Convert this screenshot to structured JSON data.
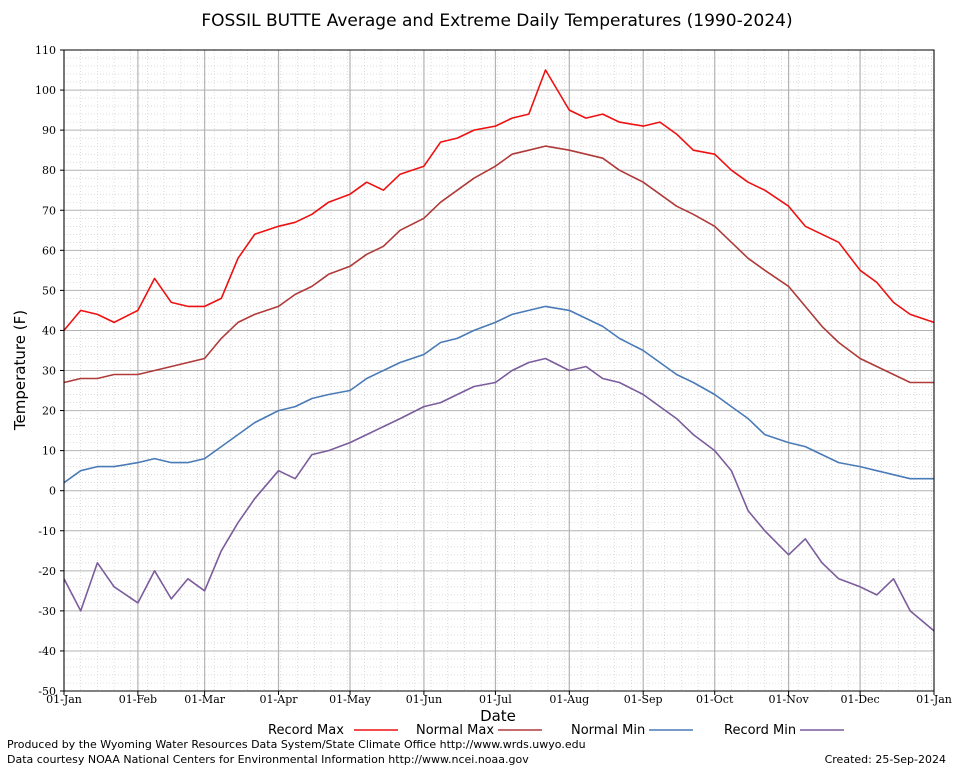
{
  "chart_data": {
    "type": "line",
    "title": "FOSSIL BUTTE Average and Extreme Daily Temperatures (1990-2024)",
    "xlabel": "Date",
    "ylabel": "Temperature (F)",
    "ylim": [
      -50,
      110
    ],
    "y_ticks": [
      "110",
      "100",
      "90",
      "80",
      "70",
      "60",
      "50",
      "40",
      "30",
      "20",
      "10",
      "0",
      "-10",
      "-20",
      "-30",
      "-40",
      "-50"
    ],
    "x_ticks": [
      "01-Jan",
      "01-Feb",
      "01-Mar",
      "01-Apr",
      "01-May",
      "01-Jun",
      "01-Jul",
      "01-Aug",
      "01-Sep",
      "01-Oct",
      "01-Nov",
      "01-Dec",
      "01-Jan"
    ],
    "grid": true,
    "legend_position": "bottom",
    "x_dates": [
      "01-Jan",
      "08-Jan",
      "15-Jan",
      "22-Jan",
      "01-Feb",
      "08-Feb",
      "15-Feb",
      "22-Feb",
      "01-Mar",
      "08-Mar",
      "15-Mar",
      "22-Mar",
      "01-Apr",
      "08-Apr",
      "15-Apr",
      "22-Apr",
      "01-May",
      "08-May",
      "15-May",
      "22-May",
      "01-Jun",
      "08-Jun",
      "15-Jun",
      "22-Jun",
      "01-Jul",
      "08-Jul",
      "15-Jul",
      "22-Jul",
      "01-Aug",
      "08-Aug",
      "15-Aug",
      "22-Aug",
      "01-Sep",
      "08-Sep",
      "15-Sep",
      "22-Sep",
      "01-Oct",
      "08-Oct",
      "15-Oct",
      "22-Oct",
      "01-Nov",
      "08-Nov",
      "15-Nov",
      "22-Nov",
      "01-Dec",
      "08-Dec",
      "15-Dec",
      "22-Dec",
      "31-Dec"
    ],
    "series": [
      {
        "name": "Record Max",
        "color": "#ee1111",
        "values": [
          40,
          45,
          44,
          42,
          45,
          53,
          47,
          46,
          46,
          48,
          58,
          64,
          66,
          67,
          69,
          72,
          74,
          77,
          75,
          79,
          81,
          87,
          88,
          90,
          91,
          93,
          94,
          105,
          95,
          93,
          94,
          92,
          91,
          92,
          89,
          85,
          84,
          80,
          77,
          75,
          71,
          66,
          64,
          62,
          55,
          52,
          47,
          44,
          42
        ]
      },
      {
        "name": "Normal Max",
        "color": "#b03a3a",
        "values": [
          27,
          28,
          28,
          29,
          29,
          30,
          31,
          32,
          33,
          38,
          42,
          44,
          46,
          49,
          51,
          54,
          56,
          59,
          61,
          65,
          68,
          72,
          75,
          78,
          81,
          84,
          85,
          86,
          85,
          84,
          83,
          80,
          77,
          74,
          71,
          69,
          66,
          62,
          58,
          55,
          51,
          46,
          41,
          37,
          33,
          31,
          29,
          27,
          27
        ]
      },
      {
        "name": "Normal Min",
        "color": "#4a7bb7",
        "values": [
          2,
          5,
          6,
          6,
          7,
          8,
          7,
          7,
          8,
          11,
          14,
          17,
          20,
          21,
          23,
          24,
          25,
          28,
          30,
          32,
          34,
          37,
          38,
          40,
          42,
          44,
          45,
          46,
          45,
          43,
          41,
          38,
          35,
          32,
          29,
          27,
          24,
          21,
          18,
          14,
          12,
          11,
          9,
          7,
          6,
          5,
          4,
          3,
          3
        ]
      },
      {
        "name": "Record Min",
        "color": "#7b5c9c",
        "values": [
          -22,
          -30,
          -18,
          -24,
          -28,
          -20,
          -27,
          -22,
          -25,
          -15,
          -8,
          -2,
          5,
          3,
          9,
          10,
          12,
          14,
          16,
          18,
          21,
          22,
          24,
          26,
          27,
          30,
          32,
          33,
          30,
          31,
          28,
          27,
          24,
          21,
          18,
          14,
          10,
          5,
          -5,
          -10,
          -16,
          -12,
          -18,
          -22,
          -24,
          -26,
          -22,
          -30,
          -35
        ]
      }
    ]
  },
  "footer": {
    "left_line1": "Produced by the Wyoming Water Resources Data System/State Climate Office http://www.wrds.uwyo.edu",
    "left_line2": "Data courtesy NOAA National Centers for Environmental Information http://www.ncei.noaa.gov",
    "created": "Created:  25-Sep-2024"
  }
}
